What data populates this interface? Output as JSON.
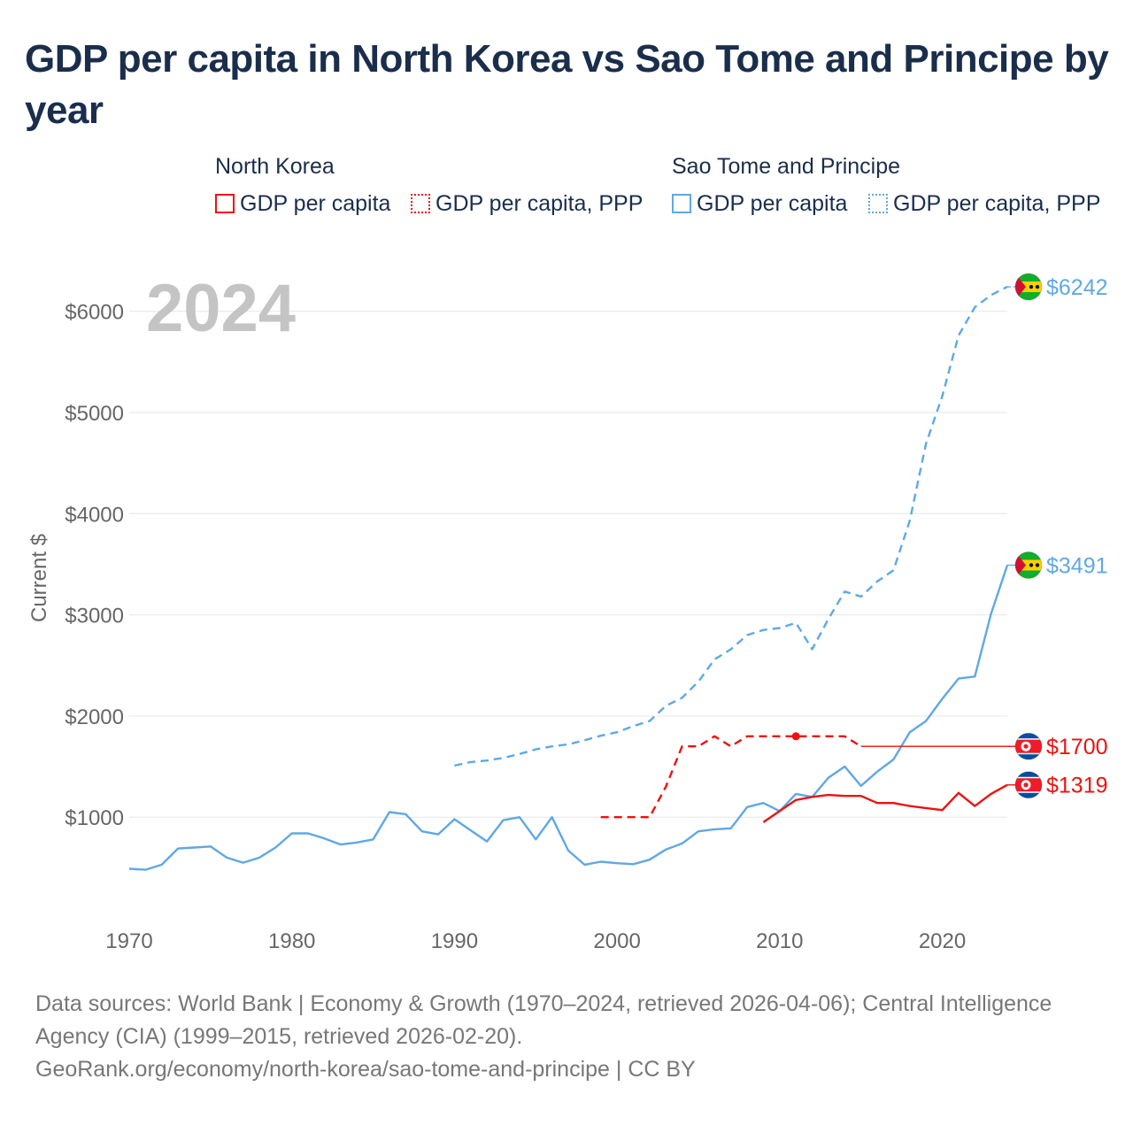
{
  "title": "GDP per capita in North Korea vs Sao Tome and Principe by year",
  "legend": {
    "north_korea": {
      "title": "North Korea",
      "gdp": "GDP per capita",
      "ppp": "GDP per capita, PPP"
    },
    "sao_tome": {
      "title": "Sao Tome and Principe",
      "gdp": "GDP per capita",
      "ppp": "GDP per capita, PPP"
    }
  },
  "year_label": "2024",
  "colors": {
    "north_korea": "#ee1111",
    "sao_tome": "#5fa8e4",
    "year_label": "#c4c4c4",
    "axis_text": "#666666"
  },
  "chart_data": {
    "type": "line",
    "title": "GDP per capita in North Korea vs Sao Tome and Principe by year",
    "xlabel": "",
    "ylabel": "Current $",
    "xlim": [
      1970,
      2024
    ],
    "ylim": [
      0,
      6500
    ],
    "x_ticks": [
      1970,
      1980,
      1990,
      2000,
      2010,
      2020
    ],
    "x_tick_labels": [
      "1970",
      "1980",
      "1990",
      "2000",
      "2010",
      "2020"
    ],
    "y_ticks": [
      1000,
      2000,
      3000,
      4000,
      5000,
      6000
    ],
    "y_tick_labels": [
      "$1000",
      "$2000",
      "$3000",
      "$4000",
      "$5000",
      "$6000"
    ],
    "grid": true,
    "series": [
      {
        "name": "Sao Tome and Principe - GDP per capita, PPP",
        "country": "sao_tome",
        "style": "dashed",
        "x": [
          1990,
          1991,
          1992,
          1993,
          1994,
          1995,
          1996,
          1997,
          1998,
          1999,
          2000,
          2001,
          2002,
          2003,
          2004,
          2005,
          2006,
          2007,
          2008,
          2009,
          2010,
          2011,
          2012,
          2013,
          2014,
          2015,
          2016,
          2017,
          2018,
          2019,
          2020,
          2021,
          2022,
          2023,
          2024
        ],
        "values": [
          1510,
          1545,
          1560,
          1585,
          1625,
          1670,
          1700,
          1720,
          1760,
          1805,
          1840,
          1900,
          1950,
          2100,
          2180,
          2340,
          2560,
          2660,
          2800,
          2850,
          2870,
          2920,
          2660,
          2960,
          3230,
          3180,
          3330,
          3440,
          3930,
          4690,
          5160,
          5760,
          6040,
          6160,
          6242
        ]
      },
      {
        "name": "Sao Tome and Principe - GDP per capita",
        "country": "sao_tome",
        "style": "solid",
        "x": [
          1970,
          1971,
          1972,
          1973,
          1974,
          1975,
          1976,
          1977,
          1978,
          1979,
          1980,
          1981,
          1982,
          1983,
          1984,
          1985,
          1986,
          1987,
          1988,
          1989,
          1990,
          1991,
          1992,
          1993,
          1994,
          1995,
          1996,
          1997,
          1998,
          1999,
          2000,
          2001,
          2002,
          2003,
          2004,
          2005,
          2006,
          2007,
          2008,
          2009,
          2010,
          2011,
          2012,
          2013,
          2014,
          2015,
          2016,
          2017,
          2018,
          2019,
          2020,
          2021,
          2022,
          2023,
          2024
        ],
        "values": [
          490,
          480,
          530,
          690,
          700,
          710,
          600,
          550,
          600,
          700,
          840,
          840,
          790,
          730,
          750,
          780,
          1050,
          1030,
          860,
          830,
          980,
          870,
          760,
          970,
          1000,
          780,
          1000,
          670,
          530,
          560,
          545,
          535,
          580,
          680,
          740,
          860,
          880,
          890,
          1100,
          1140,
          1060,
          1230,
          1200,
          1390,
          1500,
          1310,
          1450,
          1570,
          1840,
          1950,
          2170,
          2370,
          2390,
          3010,
          3491
        ]
      },
      {
        "name": "North Korea - GDP per capita, PPP",
        "country": "north_korea",
        "style": "dashed",
        "x": [
          1999,
          2000,
          2001,
          2002,
          2003,
          2004,
          2005,
          2006,
          2007,
          2008,
          2009,
          2010,
          2011,
          2012,
          2013,
          2014,
          2015
        ],
        "values": [
          1000,
          1000,
          1000,
          1000,
          1300,
          1700,
          1700,
          1800,
          1700,
          1800,
          1800,
          1800,
          1800,
          1800,
          1800,
          1800,
          1700
        ],
        "marker_x": 2011
      },
      {
        "name": "North Korea - GDP per capita",
        "country": "north_korea",
        "style": "solid",
        "x": [
          2009,
          2010,
          2011,
          2012,
          2013,
          2014,
          2015,
          2016,
          2017,
          2018,
          2019,
          2020,
          2021,
          2022,
          2023,
          2024
        ],
        "values": [
          950,
          1060,
          1170,
          1200,
          1220,
          1210,
          1210,
          1140,
          1140,
          1110,
          1090,
          1070,
          1240,
          1110,
          1230,
          1319
        ]
      }
    ],
    "end_labels": [
      {
        "country": "sao_tome",
        "series": "ppp",
        "value": 6242,
        "text": "$6242"
      },
      {
        "country": "sao_tome",
        "series": "gdp",
        "value": 3491,
        "text": "$3491"
      },
      {
        "country": "north_korea",
        "series": "ppp",
        "value": 1700,
        "text": "$1700"
      },
      {
        "country": "north_korea",
        "series": "gdp",
        "value": 1319,
        "text": "$1319"
      }
    ]
  },
  "footer": {
    "line1": "Data sources: World Bank | Economy & Growth (1970–2024, retrieved 2026-04-06); Central Intelligence Agency (CIA) (1999–2015, retrieved 2026-02-20).",
    "line2": "GeoRank.org/economy/north-korea/sao-tome-and-principe | CC BY"
  }
}
